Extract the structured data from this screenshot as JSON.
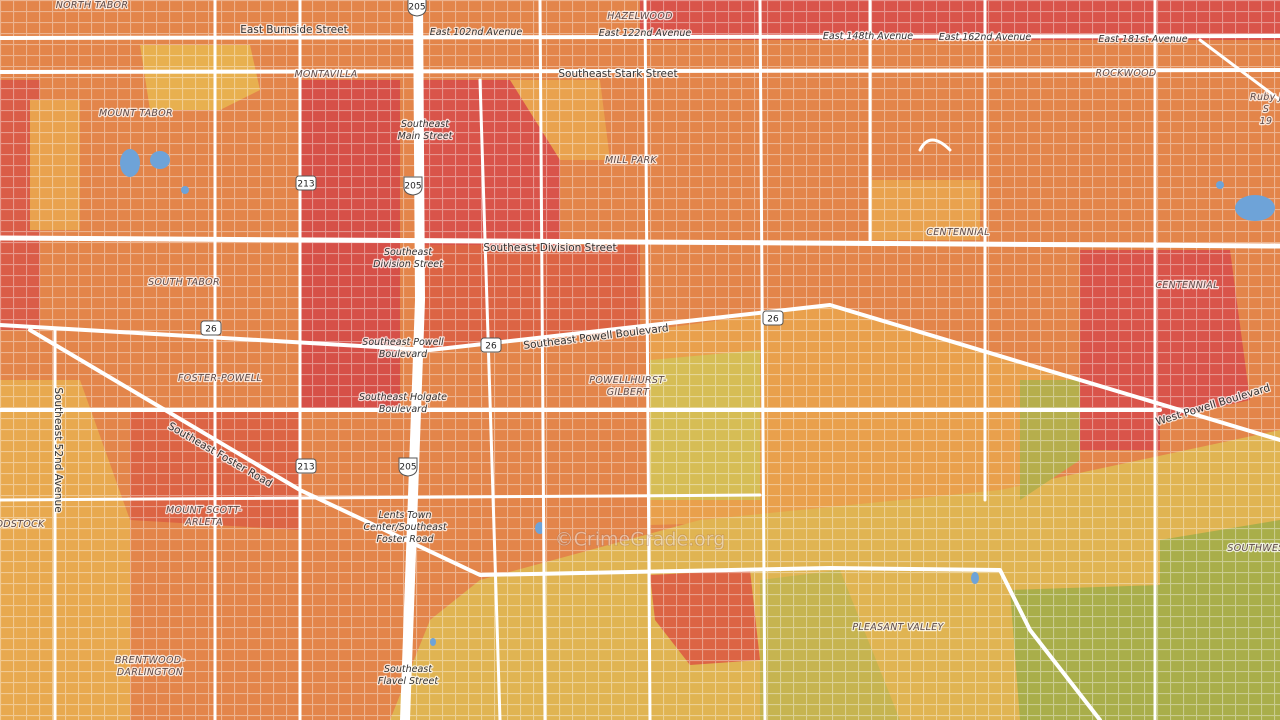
{
  "map": {
    "watermark": "©CrimeGrade.org",
    "neighborhoods": [
      {
        "lines": [
          "NORTH TABOR"
        ]
      },
      {
        "lines": [
          "HAZELWOOD"
        ]
      },
      {
        "lines": [
          "MONTAVILLA"
        ]
      },
      {
        "lines": [
          "MOUNT TABOR"
        ]
      },
      {
        "lines": [
          "MILL PARK"
        ]
      },
      {
        "lines": [
          "CENTENNIAL"
        ]
      },
      {
        "lines": [
          "ROCKWOOD"
        ]
      },
      {
        "lines": [
          "SOUTH TABOR"
        ]
      },
      {
        "lines": [
          "CENTENNIAL"
        ]
      },
      {
        "lines": [
          "FOSTER-POWELL"
        ]
      },
      {
        "lines": [
          "POWELLHURST-",
          "GILBERT"
        ]
      },
      {
        "lines": [
          "MOUNT SCOTT-",
          "ARLETA"
        ]
      },
      {
        "lines": [
          "ODSTOCK"
        ]
      },
      {
        "lines": [
          "BRENTWOOD-",
          "DARLINGTON"
        ]
      },
      {
        "lines": [
          "PLEASANT VALLEY"
        ]
      },
      {
        "lines": [
          "SOUTHWES"
        ]
      },
      {
        "lines": [
          "Ruby J",
          "S",
          "19"
        ]
      }
    ],
    "streets": [
      {
        "lines": [
          "East Burnside Street"
        ]
      },
      {
        "lines": [
          "East 102nd Avenue"
        ]
      },
      {
        "lines": [
          "East 122nd Avenue"
        ]
      },
      {
        "lines": [
          "East 148th Avenue"
        ]
      },
      {
        "lines": [
          "East 162nd Avenue"
        ]
      },
      {
        "lines": [
          "East 181st Avenue"
        ]
      },
      {
        "lines": [
          "Southeast Stark Street"
        ]
      },
      {
        "lines": [
          "Southeast",
          "Main Street"
        ]
      },
      {
        "lines": [
          "Southeast Division Street"
        ]
      },
      {
        "lines": [
          "Southeast",
          "Division Street"
        ]
      },
      {
        "lines": [
          "Southeast Powell Boulevard"
        ]
      },
      {
        "lines": [
          "Southeast Powell",
          "Boulevard"
        ]
      },
      {
        "lines": [
          "Southeast Holgate",
          "Boulevard"
        ]
      },
      {
        "lines": [
          "Southeast Foster Road"
        ]
      },
      {
        "lines": [
          "Southeast 52nd Avenue"
        ]
      },
      {
        "lines": [
          "Lents Town",
          "Center/Southeast",
          "Foster Road"
        ]
      },
      {
        "lines": [
          "Southeast",
          "Flavel Street"
        ]
      },
      {
        "lines": [
          "West Powell Boulevard"
        ]
      }
    ],
    "shields": [
      "205",
      "205",
      "205",
      "213",
      "213",
      "26",
      "26",
      "26"
    ]
  }
}
